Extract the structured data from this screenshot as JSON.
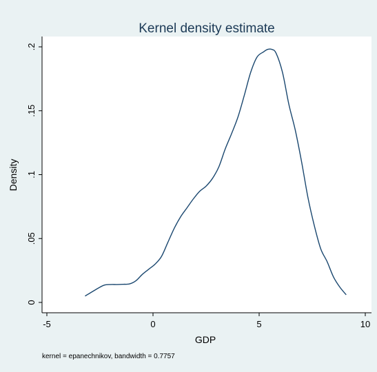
{
  "chart_data": {
    "type": "line",
    "title": "Kernel density estimate",
    "xlabel": "GDP",
    "ylabel": "Density",
    "note": "kernel = epanechnikov, bandwidth = 0.7757",
    "xlim": [
      -5,
      10
    ],
    "ylim": [
      0,
      0.2
    ],
    "xticks": [
      {
        "value": -5,
        "label": "-5"
      },
      {
        "value": 0,
        "label": "0"
      },
      {
        "value": 5,
        "label": "5"
      },
      {
        "value": 10,
        "label": "10"
      }
    ],
    "yticks": [
      {
        "value": 0,
        "label": "0"
      },
      {
        "value": 0.05,
        "label": ".05"
      },
      {
        "value": 0.1,
        "label": ".1"
      },
      {
        "value": 0.15,
        "label": ".15"
      },
      {
        "value": 0.2,
        "label": ".2"
      }
    ],
    "grid": false,
    "legend": "none",
    "colors": {
      "outer_background": "#eaf2f3",
      "plot_background": "#ffffff",
      "line": "#1a476f",
      "title": "#1c3a56"
    },
    "series": [
      {
        "x": [
          -3.2,
          -2.9,
          -2.6,
          -2.3,
          -2.0,
          -1.7,
          -1.4,
          -1.1,
          -0.8,
          -0.5,
          -0.2,
          0.1,
          0.4,
          0.7,
          1.0,
          1.3,
          1.6,
          1.9,
          2.2,
          2.5,
          2.8,
          3.1,
          3.4,
          3.7,
          4.0,
          4.3,
          4.6,
          4.9,
          5.2,
          5.4,
          5.6,
          5.8,
          6.1,
          6.4,
          6.7,
          7.0,
          7.3,
          7.6,
          7.9,
          8.2,
          8.5,
          8.8,
          9.1
        ],
        "y": [
          0.005,
          0.008,
          0.011,
          0.0135,
          0.014,
          0.014,
          0.0142,
          0.0145,
          0.017,
          0.022,
          0.026,
          0.03,
          0.036,
          0.047,
          0.058,
          0.067,
          0.074,
          0.081,
          0.087,
          0.091,
          0.097,
          0.106,
          0.12,
          0.132,
          0.145,
          0.162,
          0.18,
          0.192,
          0.196,
          0.198,
          0.198,
          0.195,
          0.18,
          0.155,
          0.135,
          0.11,
          0.082,
          0.06,
          0.042,
          0.032,
          0.02,
          0.012,
          0.006
        ]
      }
    ]
  }
}
